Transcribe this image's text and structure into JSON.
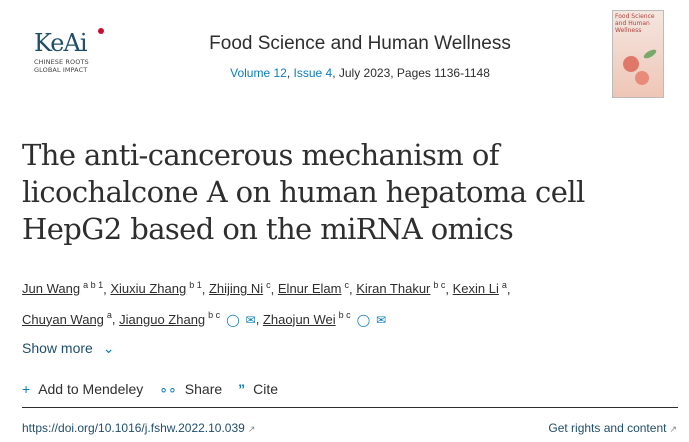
{
  "publisher": {
    "logo_text": "KeAi",
    "tagline_1": "CHINESE ROOTS",
    "tagline_2": "GLOBAL IMPACT"
  },
  "journal": {
    "title": "Food Science and Human Wellness",
    "volume": "Volume 12",
    "issue": "Issue 4",
    "rest": ", July 2023, Pages 1136-1148",
    "cover_text": "Food Science and Human Wellness"
  },
  "article": {
    "title": "The anti-cancerous mechanism of licochalcone A on human hepatoma cell HepG2 based on the miRNA omics"
  },
  "authors": [
    {
      "name": "Jun Wang",
      "sup": "a b 1"
    },
    {
      "name": "Xiuxiu Zhang",
      "sup": "b 1"
    },
    {
      "name": "Zhijing Ni",
      "sup": "c"
    },
    {
      "name": "Elnur Elam",
      "sup": "c"
    },
    {
      "name": "Kiran Thakur",
      "sup": "b c"
    },
    {
      "name": "Kexin Li",
      "sup": "a"
    },
    {
      "name": "Chuyan Wang",
      "sup": "a"
    },
    {
      "name": "Jianguo Zhang",
      "sup": "b c"
    },
    {
      "name": "Zhaojun Wei",
      "sup": "b c"
    }
  ],
  "icons": {
    "person": "👤",
    "email": "✉"
  },
  "show_more": "Show more",
  "actions": {
    "mendeley": "Add to Mendeley",
    "share": "Share",
    "cite": "Cite"
  },
  "doi": "https://doi.org/10.1016/j.fshw.2022.10.039",
  "rights": "Get rights and content",
  "colors": {
    "link": "#0c7dbb",
    "text": "#2e2e2e"
  }
}
